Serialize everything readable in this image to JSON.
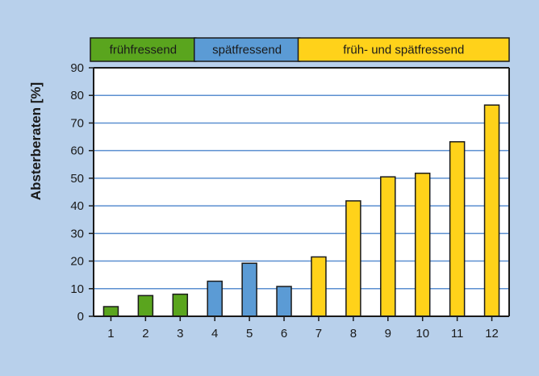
{
  "chart_data": {
    "type": "bar",
    "title": "",
    "xlabel": "",
    "ylabel": "Absterberaten [%]",
    "ylim": [
      0,
      90
    ],
    "yticks": [
      0,
      10,
      20,
      30,
      40,
      50,
      60,
      70,
      80,
      90
    ],
    "grid": true,
    "legend_position": "top",
    "categories": [
      "1",
      "2",
      "3",
      "4",
      "5",
      "6",
      "7",
      "8",
      "9",
      "10",
      "11",
      "12"
    ],
    "values": [
      3.5,
      7.5,
      8,
      12.7,
      19.2,
      10.8,
      21.5,
      41.8,
      50.5,
      51.8,
      63.2,
      76.5
    ],
    "groups": [
      {
        "name": "frühfressend",
        "color": "#5aa51e",
        "categories": [
          "1",
          "2",
          "3"
        ]
      },
      {
        "name": "spätfressend",
        "color": "#5b9bd5",
        "categories": [
          "4",
          "5",
          "6"
        ]
      },
      {
        "name": "früh- und spätfressend",
        "color": "#ffd21a",
        "categories": [
          "7",
          "8",
          "9",
          "10",
          "11",
          "12"
        ]
      }
    ],
    "colors": {
      "background": "#b8d0eb",
      "plot_background": "#ffffff",
      "gridline": "#5b8fd0"
    }
  }
}
